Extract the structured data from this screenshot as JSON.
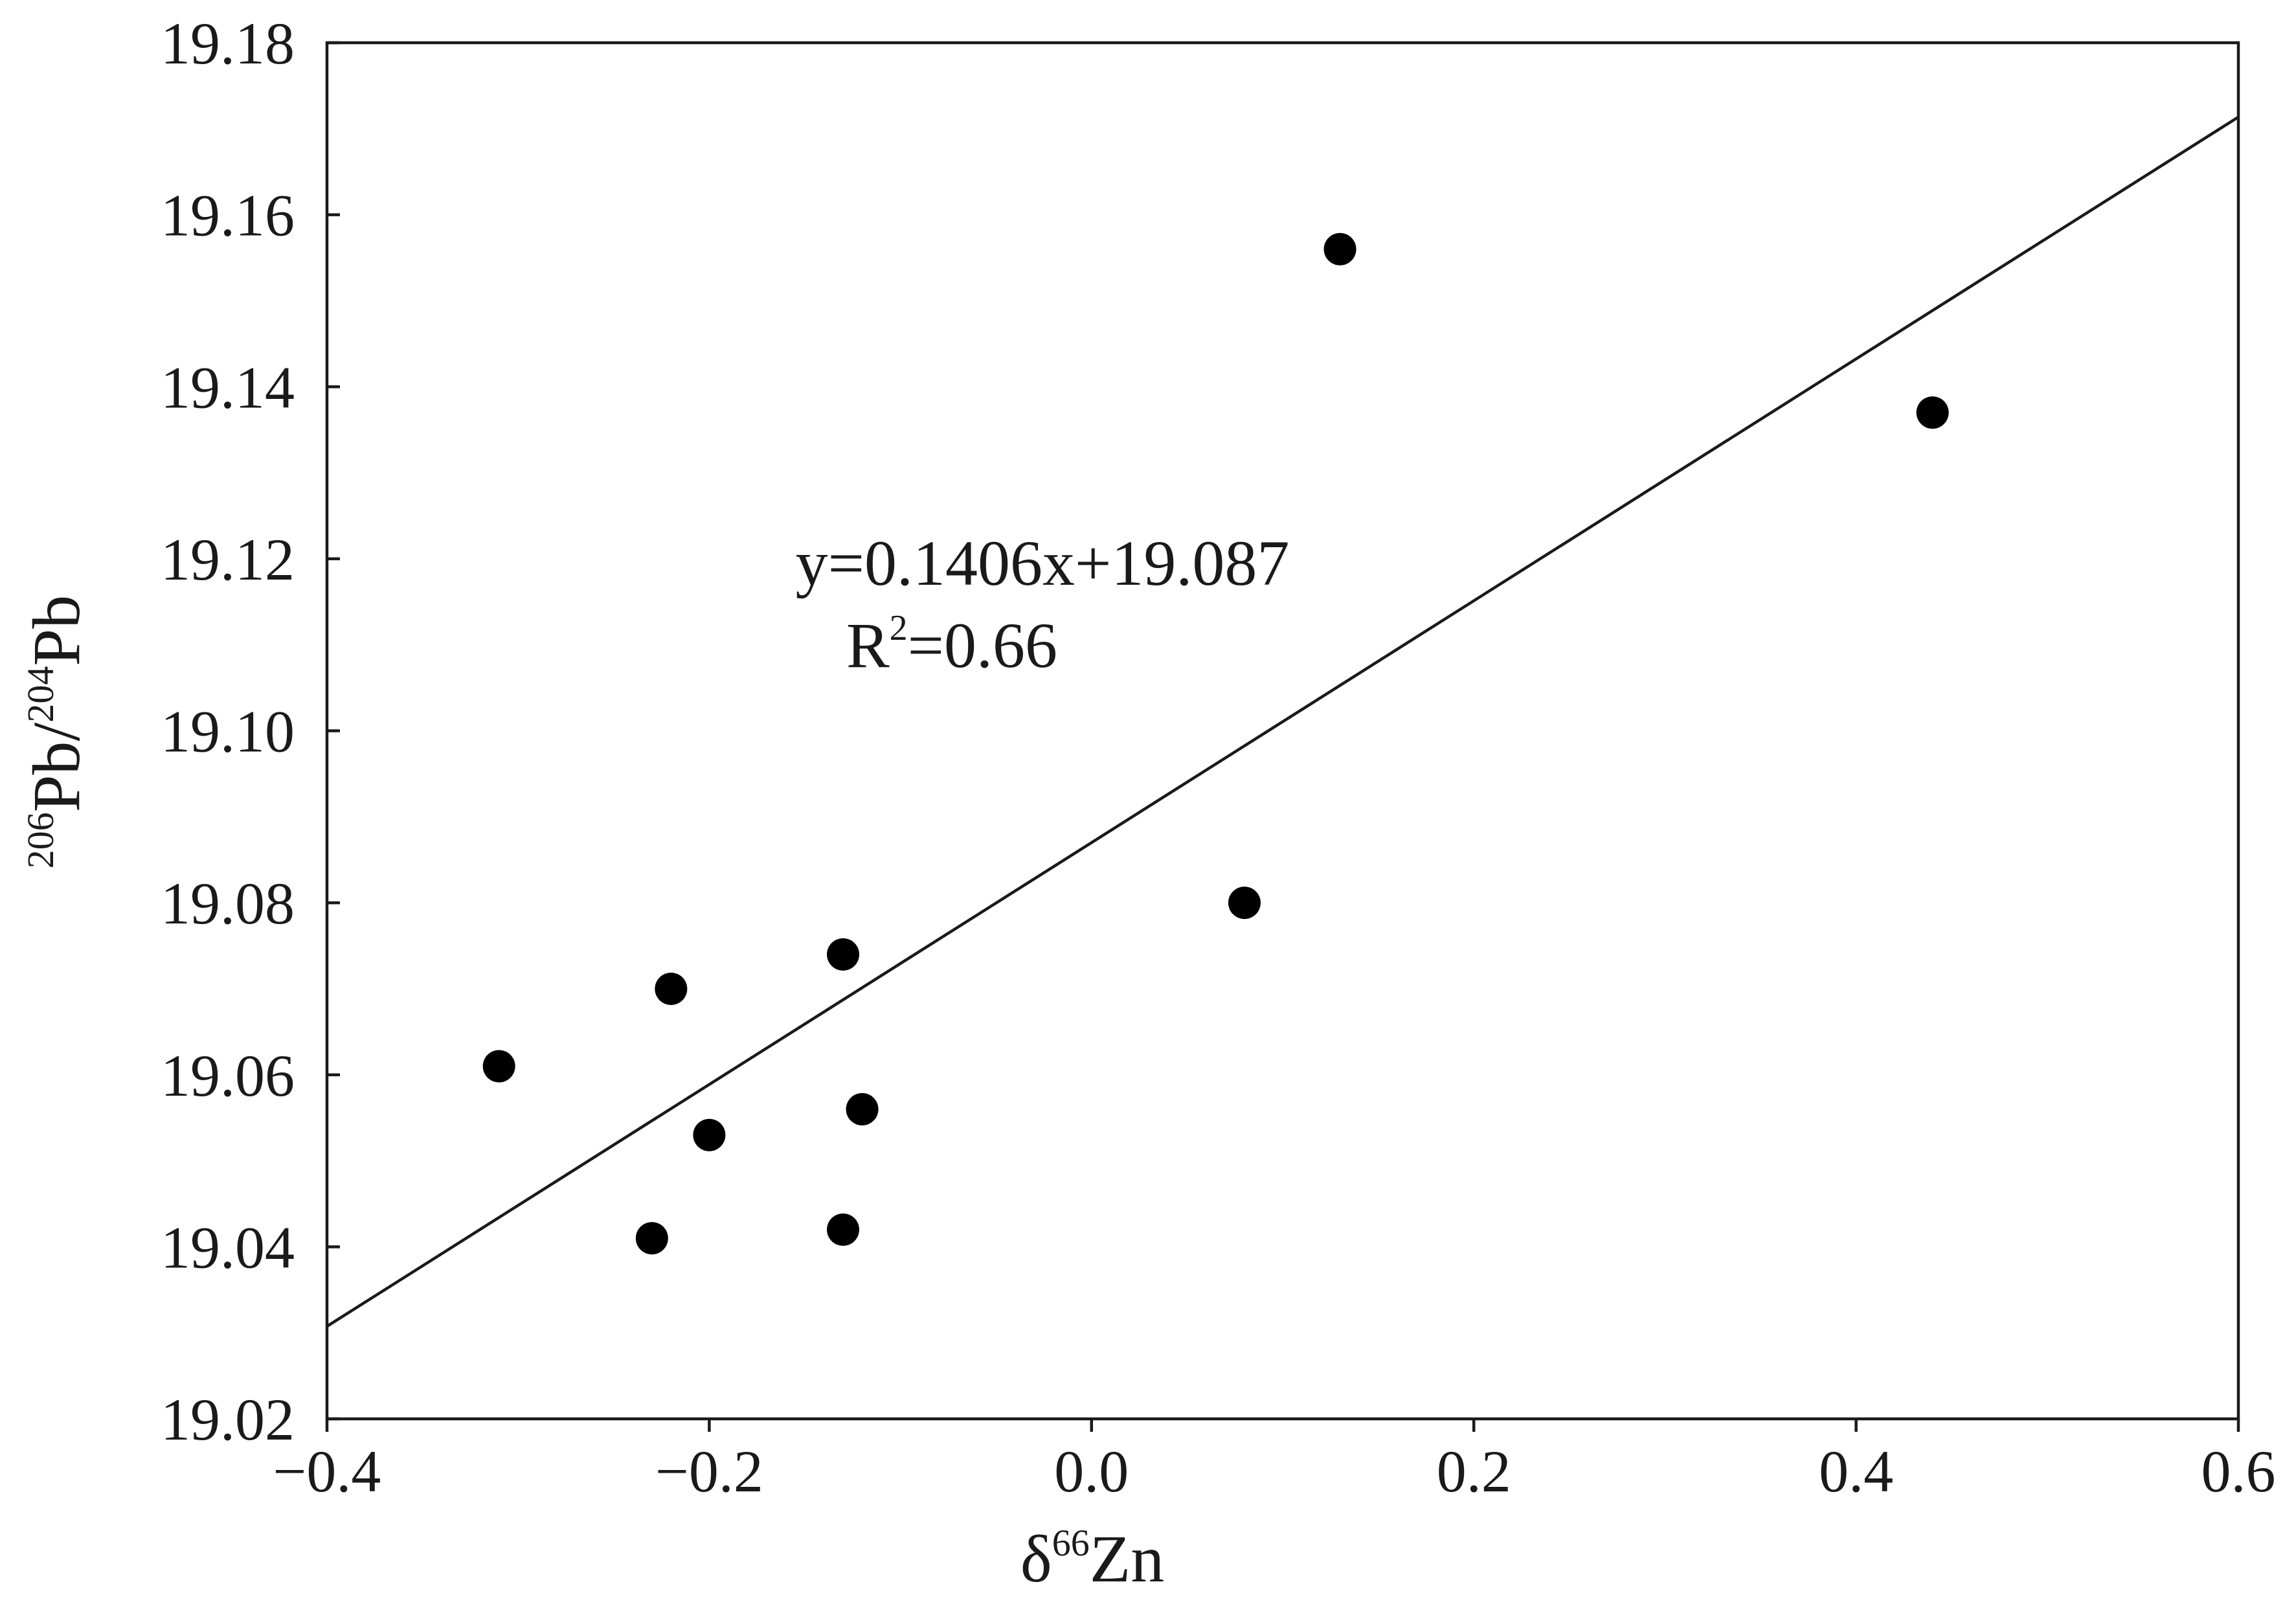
{
  "chart_data": {
    "type": "scatter",
    "xlabel": {
      "prefix": "δ",
      "superscript": "66",
      "suffix": "Zn"
    },
    "ylabel": {
      "superscript1": "206",
      "main1": "Pb/",
      "superscript2": "204",
      "main2": "Pb"
    },
    "xlim": [
      -0.4,
      0.6
    ],
    "ylim": [
      19.02,
      19.18
    ],
    "x_ticks": [
      -0.4,
      -0.2,
      0.0,
      0.2,
      0.4,
      0.6
    ],
    "x_tick_labels": [
      "−0.4",
      "−0.2",
      "0.0",
      "0.2",
      "0.4",
      "0.6"
    ],
    "y_ticks": [
      19.02,
      19.04,
      19.06,
      19.08,
      19.1,
      19.12,
      19.14,
      19.16,
      19.18
    ],
    "y_tick_labels": [
      "19.02",
      "19.04",
      "19.06",
      "19.08",
      "19.10",
      "19.12",
      "19.14",
      "19.16",
      "19.18"
    ],
    "grid": false,
    "points": [
      {
        "x": -0.31,
        "y": 19.061
      },
      {
        "x": -0.22,
        "y": 19.07
      },
      {
        "x": -0.23,
        "y": 19.041
      },
      {
        "x": -0.2,
        "y": 19.053
      },
      {
        "x": -0.13,
        "y": 19.074
      },
      {
        "x": -0.12,
        "y": 19.056
      },
      {
        "x": -0.13,
        "y": 19.042
      },
      {
        "x": 0.08,
        "y": 19.08
      },
      {
        "x": 0.13,
        "y": 19.156
      },
      {
        "x": 0.44,
        "y": 19.137
      }
    ],
    "trendline": {
      "slope": 0.1406,
      "intercept": 19.087,
      "x_range": [
        -0.4,
        0.6
      ]
    },
    "annotation": {
      "equation": "y=0.1406x+19.087",
      "r2_prefix": "R",
      "r2_superscript": "2",
      "r2_value": "=0.66"
    }
  }
}
